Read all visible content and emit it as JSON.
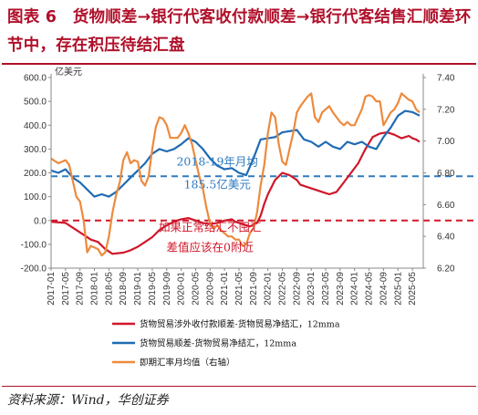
{
  "figure": {
    "title": "图表 6　货物顺差→银行代客收付款顺差→银行代客结售汇顺差环节中，存在积压待结汇盘",
    "source": "资料来源：Wind，华创证券"
  },
  "colors": {
    "red": "#d0172a",
    "blue": "#1f6bb4",
    "orange": "#ee8a3c",
    "frame": "#b0102a",
    "ref_blue": "#2f7bbf",
    "ref_red": "#d0172a"
  },
  "chart_data": {
    "type": "line",
    "yunit": "亿美元",
    "ylim": [
      -200,
      600
    ],
    "yticks": [
      "600.0",
      "500.0",
      "400.0",
      "300.0",
      "200.0",
      "100.0",
      "0.0",
      "-100.0",
      "-200.0"
    ],
    "y2lim": [
      6.2,
      7.4
    ],
    "y2ticks": [
      "7.40",
      "7.20",
      "7.00",
      "6.80",
      "6.60",
      "6.40",
      "6.20"
    ],
    "xticks": [
      "2017-01",
      "2017-05",
      "2017-09",
      "2018-01",
      "2018-05",
      "2018-09",
      "2019-01",
      "2019-05",
      "2019-09",
      "2020-01",
      "2020-05",
      "2020-09",
      "2021-01",
      "2021-05",
      "2021-09",
      "2022-01",
      "2022-05",
      "2022-09",
      "2023-01",
      "2023-05",
      "2023-09",
      "2024-01",
      "2024-05",
      "2024-09",
      "2025-01",
      "2025-05"
    ],
    "xrange": [
      0,
      103
    ],
    "reference_lines": [
      {
        "value": 185.5,
        "axis": "left",
        "color": "blue",
        "style": "dashed"
      },
      {
        "value": 0,
        "axis": "left",
        "color": "red",
        "style": "dashed"
      }
    ],
    "annotations": [
      {
        "text": "2018-19年月均",
        "x": 46,
        "y": 230,
        "color": "ref_blue"
      },
      {
        "text": "185.5亿美元",
        "x": 46,
        "y": 135,
        "color": "ref_blue"
      },
      {
        "text": "如果正常结汇不囤汇",
        "x": 44,
        "y": -45,
        "color": "ref_red"
      },
      {
        "text": "差值应该在0附近",
        "x": 44,
        "y": -130,
        "color": "ref_red"
      }
    ],
    "series": [
      {
        "name": "货物贸易涉外收付款顺差-货物贸易净结汇，12mma",
        "axis": "left",
        "color": "red",
        "x": [
          0,
          4,
          7,
          9,
          11,
          13,
          15,
          17,
          20,
          22,
          24,
          26,
          28,
          30,
          32,
          34,
          36,
          38,
          40,
          42,
          44,
          46,
          48,
          50,
          51,
          53,
          55,
          57,
          58,
          59,
          60,
          62,
          64,
          66,
          68,
          69,
          71,
          73,
          75,
          77,
          79,
          81,
          83,
          85,
          87,
          89,
          91,
          93,
          95,
          97,
          98,
          99,
          100,
          101,
          102
        ],
        "y": [
          -5,
          -10,
          -40,
          -60,
          -80,
          -90,
          -120,
          -140,
          -135,
          -125,
          -110,
          -90,
          -70,
          -40,
          -20,
          -5,
          5,
          10,
          0,
          -10,
          -15,
          -10,
          0,
          5,
          -5,
          -15,
          -25,
          -10,
          20,
          70,
          110,
          170,
          200,
          190,
          170,
          150,
          140,
          130,
          120,
          110,
          120,
          160,
          200,
          240,
          300,
          350,
          365,
          370,
          360,
          345,
          350,
          355,
          345,
          340,
          330
        ]
      },
      {
        "name": "货物贸易顺差-货物贸易净结汇，12mma",
        "axis": "left",
        "color": "blue",
        "x": [
          0,
          2,
          4,
          6,
          8,
          10,
          12,
          14,
          16,
          18,
          20,
          22,
          24,
          26,
          28,
          30,
          32,
          34,
          36,
          38,
          40,
          42,
          44,
          46,
          48,
          50,
          52,
          54,
          56,
          58,
          60,
          62,
          64,
          66,
          68,
          70,
          72,
          74,
          76,
          78,
          80,
          82,
          84,
          86,
          88,
          90,
          92,
          94,
          96,
          98,
          100,
          102
        ],
        "y": [
          210,
          200,
          215,
          180,
          160,
          130,
          100,
          110,
          100,
          120,
          150,
          180,
          210,
          240,
          280,
          300,
          290,
          300,
          320,
          345,
          330,
          300,
          260,
          230,
          215,
          220,
          200,
          190,
          260,
          340,
          345,
          350,
          370,
          375,
          380,
          340,
          330,
          310,
          330,
          310,
          300,
          330,
          320,
          330,
          310,
          300,
          350,
          390,
          440,
          460,
          455,
          440
        ]
      },
      {
        "name": "即期汇率月均值（右轴）",
        "axis": "right",
        "color": "orange",
        "x": [
          0,
          2,
          4,
          5,
          6,
          7,
          8,
          9,
          10,
          11,
          12,
          13,
          14,
          15,
          16,
          17,
          18,
          19,
          20,
          21,
          22,
          23,
          24,
          25,
          26,
          27,
          28,
          29,
          30,
          31,
          32,
          33,
          34,
          35,
          36,
          37,
          38,
          39,
          40,
          41,
          42,
          43,
          44,
          45,
          46,
          47,
          48,
          49,
          50,
          51,
          52,
          53,
          54,
          55,
          56,
          57,
          58,
          59,
          60,
          61,
          62,
          63,
          64,
          65,
          66,
          67,
          68,
          69,
          70,
          71,
          72,
          73,
          74,
          75,
          76,
          77,
          78,
          79,
          80,
          81,
          82,
          83,
          84,
          85,
          86,
          87,
          88,
          89,
          90,
          91,
          92,
          93,
          94,
          95,
          96,
          97,
          98,
          99,
          100,
          101,
          102
        ],
        "y": [
          6.89,
          6.86,
          6.88,
          6.85,
          6.75,
          6.65,
          6.62,
          6.5,
          6.3,
          6.34,
          6.33,
          6.32,
          6.28,
          6.3,
          6.4,
          6.55,
          6.66,
          6.74,
          6.88,
          6.93,
          6.86,
          6.88,
          6.87,
          6.75,
          6.72,
          6.78,
          6.95,
          7.09,
          7.15,
          7.14,
          7.1,
          7.02,
          7.02,
          7.02,
          7.05,
          7.1,
          7.05,
          6.98,
          6.88,
          6.78,
          6.7,
          6.58,
          6.48,
          6.45,
          6.47,
          6.44,
          6.42,
          6.4,
          6.4,
          6.38,
          6.38,
          6.34,
          6.35,
          6.42,
          6.45,
          6.55,
          6.72,
          6.85,
          7.05,
          7.18,
          7.15,
          6.98,
          6.87,
          6.85,
          6.95,
          7.05,
          7.18,
          7.22,
          7.25,
          7.28,
          7.3,
          7.15,
          7.12,
          7.18,
          7.2,
          7.22,
          7.18,
          7.15,
          7.12,
          7.1,
          7.12,
          7.1,
          7.1,
          7.15,
          7.2,
          7.28,
          7.29,
          7.28,
          7.25,
          7.25,
          7.1,
          7.14,
          7.18,
          7.2,
          7.24,
          7.3,
          7.28,
          7.26,
          7.25,
          7.2,
          7.18
        ]
      }
    ]
  }
}
